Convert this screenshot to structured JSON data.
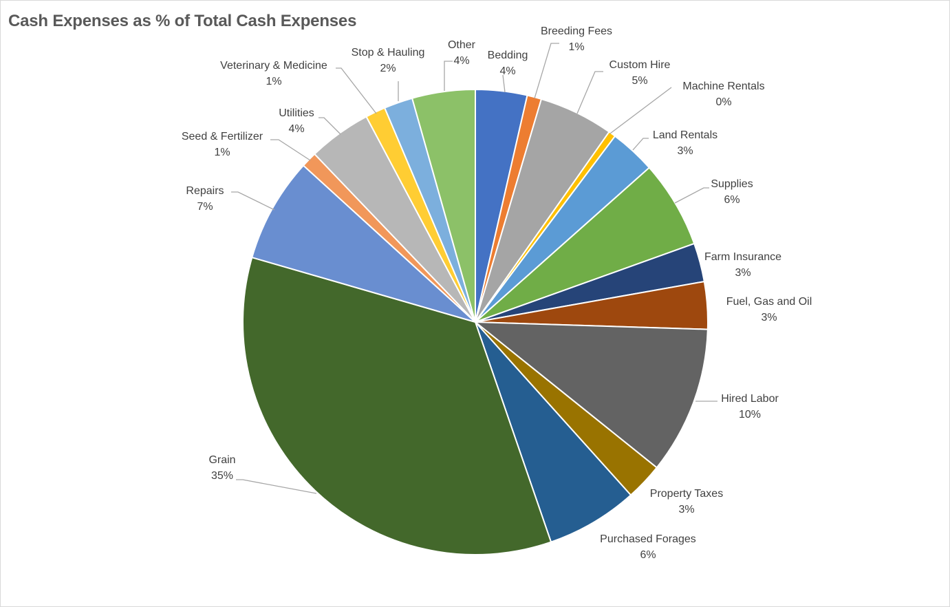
{
  "chart_data": {
    "type": "pie",
    "title": "Cash Expenses as % of Total Cash Expenses",
    "start_angle_deg": 0,
    "direction": "clockwise",
    "slices": [
      {
        "name": "Bedding",
        "value": 3.6,
        "label": "4%",
        "color": "#4472c4"
      },
      {
        "name": "Breeding Fees",
        "value": 1.0,
        "label": "1%",
        "color": "#ed7d31"
      },
      {
        "name": "Custom Hire",
        "value": 5.2,
        "label": "5%",
        "color": "#a5a5a5"
      },
      {
        "name": "Machine Rentals",
        "value": 0.5,
        "label": "0%",
        "color": "#ffc000"
      },
      {
        "name": "Land Rentals",
        "value": 3.2,
        "label": "3%",
        "color": "#5b9bd5"
      },
      {
        "name": "Supplies",
        "value": 6.1,
        "label": "6%",
        "color": "#70ad47"
      },
      {
        "name": "Farm Insurance",
        "value": 2.7,
        "label": "3%",
        "color": "#264478"
      },
      {
        "name": "Fuel, Gas and Oil",
        "value": 3.3,
        "label": "3%",
        "color": "#9e480e"
      },
      {
        "name": "Hired Labor",
        "value": 10.3,
        "label": "10%",
        "color": "#636363"
      },
      {
        "name": "Property Taxes",
        "value": 2.6,
        "label": "3%",
        "color": "#997300"
      },
      {
        "name": "Purchased Forages",
        "value": 6.4,
        "label": "6%",
        "color": "#255e91"
      },
      {
        "name": "Grain",
        "value": 34.9,
        "label": "35%",
        "color": "#43682b"
      },
      {
        "name": "Repairs",
        "value": 7.3,
        "label": "7%",
        "color": "#698ed0"
      },
      {
        "name": "Seed & Fertilizer",
        "value": 1.1,
        "label": "1%",
        "color": "#f1975a"
      },
      {
        "name": "Utilities",
        "value": 4.4,
        "label": "4%",
        "color": "#b7b7b7"
      },
      {
        "name": "Veterinary & Medicine",
        "value": 1.4,
        "label": "1%",
        "color": "#ffcd33"
      },
      {
        "name": "Stop & Hauling",
        "value": 2.0,
        "label": "2%",
        "color": "#7cafdd"
      },
      {
        "name": "Other",
        "value": 4.4,
        "label": "4%",
        "color": "#8cc168"
      }
    ]
  }
}
